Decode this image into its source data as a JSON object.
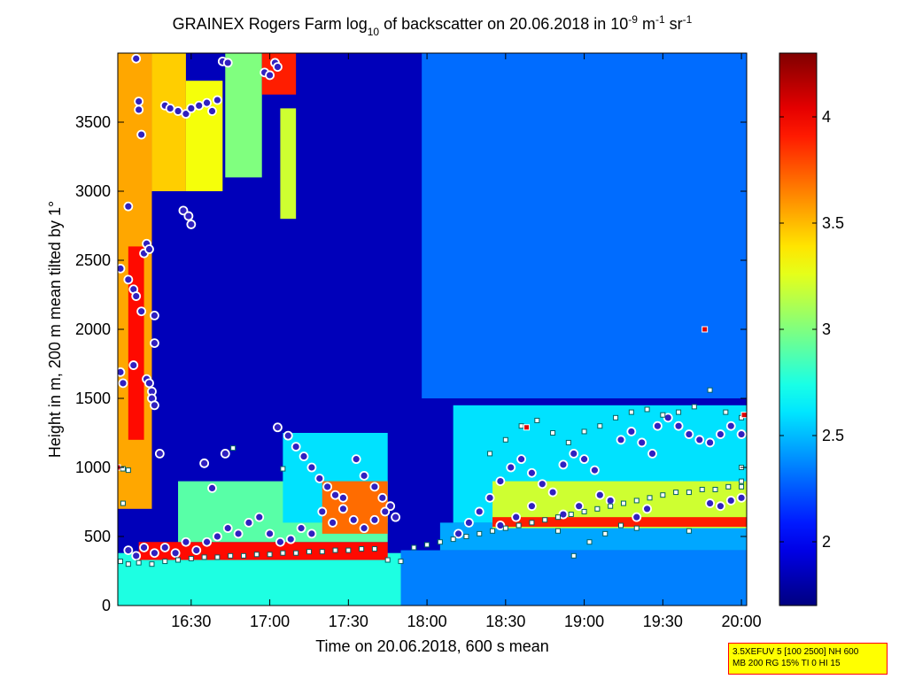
{
  "chart_data": {
    "type": "heatmap",
    "title": {
      "parts": [
        {
          "text": "GRAINEX Rogers Farm log",
          "shift": null
        },
        {
          "text": "10",
          "shift": "sub"
        },
        {
          "text": " of backscatter on 20.06.2018 in 10",
          "shift": null
        },
        {
          "text": "-9",
          "shift": "super"
        },
        {
          "text": " m",
          "shift": null
        },
        {
          "text": "-1",
          "shift": "super"
        },
        {
          "text": " sr",
          "shift": null
        },
        {
          "text": "-1",
          "shift": "super"
        }
      ]
    },
    "xlabel": "Time on 20.06.2018, 600 s mean",
    "ylabel": "Height in m, 200 m mean tilted by 1°",
    "xlim": [
      "16:02",
      "20:02"
    ],
    "ylim": [
      0,
      4000
    ],
    "x_ticks": [
      {
        "time": "16:30",
        "label": "16:30"
      },
      {
        "time": "17:00",
        "label": "17:00"
      },
      {
        "time": "17:30",
        "label": "17:30"
      },
      {
        "time": "18:00",
        "label": "18:00"
      },
      {
        "time": "18:30",
        "label": "18:30"
      },
      {
        "time": "19:00",
        "label": "19:00"
      },
      {
        "time": "19:30",
        "label": "19:30"
      },
      {
        "time": "20:00",
        "label": "20:00"
      }
    ],
    "y_ticks": [
      {
        "value": 0,
        "label": "0"
      },
      {
        "value": 500,
        "label": "500"
      },
      {
        "value": 1000,
        "label": "1000"
      },
      {
        "value": 1500,
        "label": "1500"
      },
      {
        "value": 2000,
        "label": "2000"
      },
      {
        "value": 2500,
        "label": "2500"
      },
      {
        "value": 3000,
        "label": "3000"
      },
      {
        "value": 3500,
        "label": "3500"
      }
    ],
    "colorbar": {
      "colormap": "jet",
      "range": [
        1.7,
        4.3
      ],
      "ticks": [
        {
          "value": 2,
          "label": "2"
        },
        {
          "value": 2.5,
          "label": "2.5"
        },
        {
          "value": 3,
          "label": "3"
        },
        {
          "value": 3.5,
          "label": "3.5"
        },
        {
          "value": 4,
          "label": "4"
        }
      ]
    },
    "field": {
      "background": 1.85,
      "regions": [
        {
          "t0": "16:02",
          "t1": "16:15",
          "h0": 700,
          "h1": 4000,
          "v": 3.55
        },
        {
          "t0": "16:06",
          "t1": "16:12",
          "h0": 1200,
          "h1": 2600,
          "v": 3.95
        },
        {
          "t0": "16:15",
          "t1": "16:28",
          "h0": 3000,
          "h1": 4000,
          "v": 3.45
        },
        {
          "t0": "16:28",
          "t1": "16:42",
          "h0": 3000,
          "h1": 3800,
          "v": 3.3
        },
        {
          "t0": "16:43",
          "t1": "16:57",
          "h0": 3100,
          "h1": 4000,
          "v": 3.0
        },
        {
          "t0": "16:57",
          "t1": "17:10",
          "h0": 3700,
          "h1": 4000,
          "v": 3.9
        },
        {
          "t0": "17:04",
          "t1": "17:10",
          "h0": 2800,
          "h1": 3600,
          "v": 3.2
        },
        {
          "t0": "16:02",
          "t1": "17:55",
          "h0": 0,
          "h1": 380,
          "v": 2.75
        },
        {
          "t0": "16:10",
          "t1": "17:45",
          "h0": 330,
          "h1": 460,
          "v": 3.95
        },
        {
          "t0": "16:25",
          "t1": "17:45",
          "h0": 460,
          "h1": 900,
          "v": 2.9
        },
        {
          "t0": "17:05",
          "t1": "17:45",
          "h0": 600,
          "h1": 1250,
          "v": 2.6
        },
        {
          "t0": "17:20",
          "t1": "17:45",
          "h0": 520,
          "h1": 900,
          "v": 3.7
        },
        {
          "t0": "17:50",
          "t1": "20:02",
          "h0": 0,
          "h1": 400,
          "v": 2.35
        },
        {
          "t0": "18:05",
          "t1": "20:02",
          "h0": 400,
          "h1": 600,
          "v": 2.45
        },
        {
          "t0": "18:10",
          "t1": "20:02",
          "h0": 600,
          "h1": 1450,
          "v": 2.6
        },
        {
          "t0": "18:25",
          "t1": "20:02",
          "h0": 560,
          "h1": 900,
          "v": 3.2
        },
        {
          "t0": "18:25",
          "t1": "20:02",
          "h0": 570,
          "h1": 640,
          "v": 3.9
        },
        {
          "t0": "17:58",
          "t1": "20:02",
          "h0": 1500,
          "h1": 4000,
          "v": 2.3
        }
      ]
    },
    "series": [
      {
        "name": "",
        "marker": "circle",
        "points": [
          [
            "16:03",
            2440
          ],
          [
            "16:03",
            1690
          ],
          [
            "16:04",
            1610
          ],
          [
            "16:06",
            2890
          ],
          [
            "16:06",
            2360
          ],
          [
            "16:08",
            1740
          ],
          [
            "16:08",
            2290
          ],
          [
            "16:09",
            2240
          ],
          [
            "16:09",
            3960
          ],
          [
            "16:10",
            3650
          ],
          [
            "16:10",
            3590
          ],
          [
            "16:11",
            3410
          ],
          [
            "16:11",
            2130
          ],
          [
            "16:12",
            2550
          ],
          [
            "16:13",
            2620
          ],
          [
            "16:14",
            2580
          ],
          [
            "16:13",
            1640
          ],
          [
            "16:14",
            1610
          ],
          [
            "16:15",
            1550
          ],
          [
            "16:15",
            1500
          ],
          [
            "16:16",
            1450
          ],
          [
            "16:16",
            2100
          ],
          [
            "16:16",
            1900
          ],
          [
            "16:18",
            1100
          ],
          [
            "16:20",
            3620
          ],
          [
            "16:22",
            3600
          ],
          [
            "16:25",
            3580
          ],
          [
            "16:28",
            3560
          ],
          [
            "16:30",
            3600
          ],
          [
            "16:33",
            3620
          ],
          [
            "16:36",
            3640
          ],
          [
            "16:38",
            3580
          ],
          [
            "16:40",
            3660
          ],
          [
            "16:42",
            3940
          ],
          [
            "16:44",
            3930
          ],
          [
            "16:27",
            2860
          ],
          [
            "16:29",
            2820
          ],
          [
            "16:30",
            2760
          ],
          [
            "16:35",
            1030
          ],
          [
            "16:38",
            850
          ],
          [
            "16:43",
            1100
          ],
          [
            "16:58",
            3860
          ],
          [
            "17:00",
            3840
          ],
          [
            "17:02",
            3930
          ],
          [
            "17:03",
            3900
          ],
          [
            "17:03",
            1290
          ],
          [
            "17:07",
            1230
          ],
          [
            "17:10",
            1150
          ],
          [
            "17:13",
            1080
          ],
          [
            "17:16",
            1000
          ],
          [
            "17:19",
            920
          ],
          [
            "17:22",
            860
          ],
          [
            "17:25",
            800
          ],
          [
            "17:28",
            780
          ],
          [
            "17:33",
            1060
          ],
          [
            "17:36",
            940
          ],
          [
            "17:40",
            860
          ],
          [
            "17:43",
            780
          ],
          [
            "17:46",
            720
          ],
          [
            "16:06",
            400
          ],
          [
            "16:09",
            360
          ],
          [
            "16:12",
            420
          ],
          [
            "16:16",
            380
          ],
          [
            "16:20",
            420
          ],
          [
            "16:24",
            380
          ],
          [
            "16:28",
            460
          ],
          [
            "16:32",
            400
          ],
          [
            "16:36",
            460
          ],
          [
            "16:40",
            500
          ],
          [
            "16:44",
            560
          ],
          [
            "16:48",
            520
          ],
          [
            "16:52",
            600
          ],
          [
            "16:56",
            640
          ],
          [
            "17:00",
            520
          ],
          [
            "17:04",
            460
          ],
          [
            "17:08",
            480
          ],
          [
            "17:12",
            560
          ],
          [
            "17:16",
            520
          ],
          [
            "17:20",
            680
          ],
          [
            "17:24",
            600
          ],
          [
            "17:28",
            700
          ],
          [
            "17:32",
            620
          ],
          [
            "17:36",
            560
          ],
          [
            "17:40",
            620
          ],
          [
            "17:44",
            680
          ],
          [
            "17:48",
            640
          ],
          [
            "18:12",
            520
          ],
          [
            "18:16",
            600
          ],
          [
            "18:20",
            680
          ],
          [
            "18:24",
            780
          ],
          [
            "18:28",
            900
          ],
          [
            "18:32",
            1000
          ],
          [
            "18:36",
            1060
          ],
          [
            "18:40",
            960
          ],
          [
            "18:44",
            880
          ],
          [
            "18:28",
            580
          ],
          [
            "18:34",
            640
          ],
          [
            "18:40",
            720
          ],
          [
            "18:48",
            820
          ],
          [
            "18:52",
            1020
          ],
          [
            "18:56",
            1100
          ],
          [
            "19:00",
            1060
          ],
          [
            "19:04",
            980
          ],
          [
            "18:52",
            660
          ],
          [
            "18:58",
            720
          ],
          [
            "19:06",
            800
          ],
          [
            "19:10",
            760
          ],
          [
            "19:14",
            1200
          ],
          [
            "19:18",
            1260
          ],
          [
            "19:22",
            1180
          ],
          [
            "19:26",
            1100
          ],
          [
            "19:20",
            640
          ],
          [
            "19:24",
            700
          ],
          [
            "19:28",
            1300
          ],
          [
            "19:32",
            1360
          ],
          [
            "19:36",
            1300
          ],
          [
            "19:40",
            1240
          ],
          [
            "19:44",
            1200
          ],
          [
            "19:48",
            1180
          ],
          [
            "19:52",
            1240
          ],
          [
            "19:56",
            1300
          ],
          [
            "20:00",
            1240
          ],
          [
            "19:48",
            740
          ],
          [
            "19:52",
            720
          ],
          [
            "19:56",
            760
          ],
          [
            "20:00",
            780
          ]
        ]
      },
      {
        "name": "",
        "marker": "square",
        "points": [
          [
            "16:03",
            320
          ],
          [
            "16:06",
            300
          ],
          [
            "16:10",
            310
          ],
          [
            "16:15",
            300
          ],
          [
            "16:20",
            320
          ],
          [
            "16:25",
            330
          ],
          [
            "16:30",
            340
          ],
          [
            "16:35",
            350
          ],
          [
            "16:40",
            350
          ],
          [
            "16:45",
            360
          ],
          [
            "16:50",
            360
          ],
          [
            "16:55",
            370
          ],
          [
            "17:00",
            370
          ],
          [
            "17:05",
            380
          ],
          [
            "17:10",
            380
          ],
          [
            "17:15",
            390
          ],
          [
            "17:20",
            390
          ],
          [
            "17:25",
            400
          ],
          [
            "17:30",
            400
          ],
          [
            "17:35",
            410
          ],
          [
            "17:40",
            410
          ],
          [
            "17:45",
            330
          ],
          [
            "17:50",
            320
          ],
          [
            "17:55",
            420
          ],
          [
            "18:00",
            440
          ],
          [
            "18:05",
            460
          ],
          [
            "18:10",
            480
          ],
          [
            "18:15",
            500
          ],
          [
            "18:20",
            520
          ],
          [
            "18:25",
            540
          ],
          [
            "18:30",
            560
          ],
          [
            "18:35",
            580
          ],
          [
            "18:40",
            600
          ],
          [
            "18:45",
            620
          ],
          [
            "18:50",
            640
          ],
          [
            "18:55",
            660
          ],
          [
            "19:00",
            680
          ],
          [
            "19:05",
            700
          ],
          [
            "19:10",
            720
          ],
          [
            "19:15",
            740
          ],
          [
            "19:20",
            760
          ],
          [
            "19:25",
            780
          ],
          [
            "19:30",
            800
          ],
          [
            "19:35",
            820
          ],
          [
            "19:40",
            820
          ],
          [
            "19:45",
            840
          ],
          [
            "19:50",
            840
          ],
          [
            "19:55",
            860
          ],
          [
            "20:00",
            860
          ],
          [
            "16:04",
            990
          ],
          [
            "16:06",
            980
          ],
          [
            "16:04",
            740
          ],
          [
            "16:46",
            1140
          ],
          [
            "17:05",
            990
          ],
          [
            "18:24",
            1100
          ],
          [
            "18:30",
            1200
          ],
          [
            "18:36",
            1300
          ],
          [
            "18:42",
            1340
          ],
          [
            "18:48",
            1250
          ],
          [
            "18:54",
            1180
          ],
          [
            "19:00",
            1260
          ],
          [
            "19:06",
            1300
          ],
          [
            "19:12",
            1360
          ],
          [
            "19:18",
            1400
          ],
          [
            "19:24",
            1420
          ],
          [
            "19:30",
            1380
          ],
          [
            "19:36",
            1400
          ],
          [
            "19:42",
            1440
          ],
          [
            "19:48",
            1560
          ],
          [
            "19:54",
            1400
          ],
          [
            "20:00",
            1360
          ],
          [
            "18:50",
            540
          ],
          [
            "19:02",
            460
          ],
          [
            "19:08",
            520
          ],
          [
            "19:14",
            580
          ],
          [
            "19:20",
            560
          ],
          [
            "18:56",
            360
          ],
          [
            "19:40",
            540
          ],
          [
            "20:00",
            900
          ],
          [
            "20:00",
            1000
          ]
        ]
      },
      {
        "name": "",
        "marker": "red-square",
        "points": [
          [
            "16:02",
            1000
          ],
          [
            "18:38",
            1290
          ],
          [
            "19:46",
            2000
          ],
          [
            "20:01",
            1380
          ]
        ]
      }
    ]
  },
  "annotation": {
    "line1": "3.5XEFUV 5 [100 2500] NH 600",
    "line2": "MB 200 RG 15% TI 0 HI 15",
    "background": "#ffff00",
    "border": "#ff0000"
  }
}
